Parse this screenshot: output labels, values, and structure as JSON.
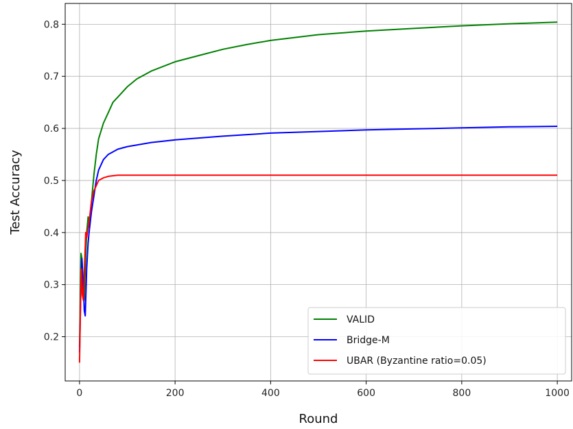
{
  "chart_data": {
    "type": "line",
    "title": "",
    "xlabel": "Round",
    "ylabel": "Test Accuracy",
    "xlim": [
      -30,
      1030
    ],
    "ylim": [
      0.115,
      0.84
    ],
    "xticks": [
      0,
      200,
      400,
      600,
      800,
      1000
    ],
    "yticks": [
      0.2,
      0.3,
      0.4,
      0.5,
      0.6,
      0.7,
      0.8
    ],
    "grid": true,
    "legend_position": "lower-right",
    "series": [
      {
        "name": "VALID",
        "color": "#008000",
        "x": [
          0,
          2,
          3,
          5,
          7,
          10,
          12,
          15,
          18,
          20,
          25,
          30,
          35,
          40,
          50,
          60,
          70,
          80,
          100,
          120,
          150,
          200,
          250,
          300,
          350,
          400,
          500,
          600,
          700,
          800,
          900,
          1000
        ],
        "y": [
          0.18,
          0.3,
          0.36,
          0.35,
          0.3,
          0.27,
          0.33,
          0.4,
          0.43,
          0.41,
          0.46,
          0.51,
          0.55,
          0.58,
          0.61,
          0.63,
          0.65,
          0.66,
          0.68,
          0.695,
          0.71,
          0.728,
          0.74,
          0.752,
          0.761,
          0.769,
          0.78,
          0.787,
          0.792,
          0.797,
          0.801,
          0.804
        ]
      },
      {
        "name": "Bridge-M",
        "color": "#0000ff",
        "x": [
          0,
          3,
          5,
          8,
          10,
          12,
          15,
          18,
          20,
          25,
          30,
          35,
          40,
          45,
          50,
          60,
          70,
          80,
          100,
          150,
          200,
          300,
          400,
          500,
          600,
          700,
          800,
          900,
          1000
        ],
        "y": [
          0.17,
          0.3,
          0.35,
          0.3,
          0.25,
          0.24,
          0.33,
          0.38,
          0.4,
          0.44,
          0.47,
          0.5,
          0.52,
          0.53,
          0.54,
          0.55,
          0.555,
          0.56,
          0.565,
          0.573,
          0.578,
          0.585,
          0.591,
          0.594,
          0.597,
          0.599,
          0.601,
          0.603,
          0.604
        ]
      },
      {
        "name": "UBAR (Byzantine ratio=0.05)",
        "color": "#ff0000",
        "x": [
          0,
          2,
          4,
          6,
          8,
          10,
          13,
          15,
          18,
          20,
          25,
          30,
          35,
          40,
          50,
          60,
          80,
          100,
          200,
          400,
          600,
          800,
          1000
        ],
        "y": [
          0.15,
          0.26,
          0.33,
          0.28,
          0.27,
          0.32,
          0.4,
          0.39,
          0.41,
          0.42,
          0.46,
          0.48,
          0.49,
          0.5,
          0.505,
          0.508,
          0.51,
          0.51,
          0.51,
          0.51,
          0.51,
          0.51,
          0.51
        ]
      }
    ]
  }
}
